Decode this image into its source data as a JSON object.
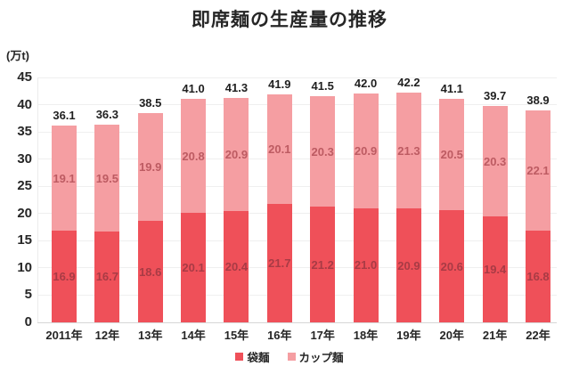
{
  "chart_data": {
    "type": "bar",
    "stacked": true,
    "title": "即席麺の生産量の推移",
    "unit": "(万t)",
    "categories": [
      "2011年",
      "12年",
      "13年",
      "14年",
      "15年",
      "16年",
      "17年",
      "18年",
      "19年",
      "20年",
      "21年",
      "22年"
    ],
    "series": [
      {
        "name": "袋麺",
        "color": "#ef5059",
        "values": [
          16.9,
          16.7,
          18.6,
          20.1,
          20.4,
          21.7,
          21.2,
          21.0,
          20.9,
          20.6,
          19.4,
          16.8
        ]
      },
      {
        "name": "カップ麺",
        "color": "#f59ea2",
        "values": [
          19.1,
          19.5,
          19.9,
          20.8,
          20.9,
          20.1,
          20.3,
          20.9,
          21.3,
          20.5,
          20.3,
          22.1
        ]
      }
    ],
    "totals": [
      "36.1",
      "36.3",
      "38.5",
      "41.0",
      "41.3",
      "41.9",
      "41.5",
      "42.0",
      "42.2",
      "41.1",
      "39.7",
      "38.9"
    ],
    "ylim": [
      0,
      45
    ],
    "yticks": [
      0,
      5,
      10,
      15,
      20,
      25,
      30,
      35,
      40,
      45
    ],
    "grid": true,
    "legend_position": "bottom",
    "xlabel": "",
    "ylabel": "(万t)"
  }
}
